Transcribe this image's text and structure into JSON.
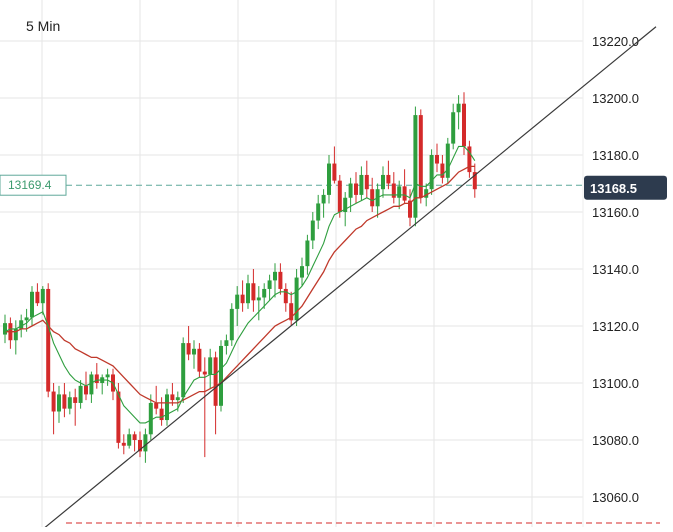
{
  "chart_data": {
    "type": "candlestick",
    "timeframe": "5 Min",
    "y_ticks": [
      "13220.0",
      "13200.0",
      "13180.0",
      "13160.0",
      "13140.0",
      "13120.0",
      "13100.0",
      "13080.0",
      "13060.0"
    ],
    "y_tick_values": [
      13220,
      13200,
      13180,
      13160,
      13140,
      13120,
      13100,
      13080,
      13060
    ],
    "ylim": [
      13050,
      13235
    ],
    "grid": true,
    "last_price_label": "13168.5",
    "last_price": 13168.5,
    "ref_price_label": "13169.4",
    "ref_price": 13169.4,
    "colors": {
      "up": "#2e9e3e",
      "down": "#d42a2a",
      "ma_fast": "#2e9e3e",
      "ma_slow": "#c0392b",
      "trendline": "#3a3a3a",
      "price_tag_bg": "#2d3b4e",
      "ref_line": "#5fa89a",
      "grid": "#e6e6e6"
    },
    "candles": [
      [
        13117,
        13124,
        13114,
        13121
      ],
      [
        13121,
        13123,
        13112,
        13115
      ],
      [
        13115,
        13122,
        13110,
        13119
      ],
      [
        13119,
        13124,
        13116,
        13122
      ],
      [
        13122,
        13126,
        13118,
        13123
      ],
      [
        13123,
        13134,
        13120,
        13132
      ],
      [
        13132,
        13135,
        13127,
        13128
      ],
      [
        13128,
        13134,
        13124,
        13133
      ],
      [
        13133,
        13135,
        13095,
        13097
      ],
      [
        13097,
        13100,
        13082,
        13090
      ],
      [
        13090,
        13099,
        13086,
        13096
      ],
      [
        13096,
        13100,
        13088,
        13091
      ],
      [
        13091,
        13097,
        13089,
        13095
      ],
      [
        13095,
        13098,
        13085,
        13093
      ],
      [
        13093,
        13101,
        13091,
        13099
      ],
      [
        13099,
        13104,
        13094,
        13096
      ],
      [
        13096,
        13104,
        13093,
        13103
      ],
      [
        13103,
        13107,
        13098,
        13100
      ],
      [
        13100,
        13103,
        13096,
        13102
      ],
      [
        13102,
        13105,
        13099,
        13103
      ],
      [
        13103,
        13105,
        13094,
        13097
      ],
      [
        13097,
        13100,
        13077,
        13079
      ],
      [
        13079,
        13082,
        13075,
        13078
      ],
      [
        13078,
        13084,
        13077,
        13082
      ],
      [
        13082,
        13083,
        13076,
        13080
      ],
      [
        13080,
        13083,
        13074,
        13076
      ],
      [
        13076,
        13084,
        13072,
        13082
      ],
      [
        13082,
        13096,
        13080,
        13093
      ],
      [
        13093,
        13099,
        13089,
        13091
      ],
      [
        13091,
        13095,
        13085,
        13087
      ],
      [
        13087,
        13098,
        13085,
        13096
      ],
      [
        13096,
        13100,
        13092,
        13094
      ],
      [
        13094,
        13097,
        13090,
        13095
      ],
      [
        13095,
        13116,
        13093,
        13114
      ],
      [
        13114,
        13120,
        13108,
        13110
      ],
      [
        13110,
        13115,
        13105,
        13112
      ],
      [
        13112,
        13114,
        13102,
        13104
      ],
      [
        13104,
        13109,
        13074,
        13103
      ],
      [
        13103,
        13112,
        13098,
        13109
      ],
      [
        13109,
        13111,
        13082,
        13092
      ],
      [
        13092,
        13115,
        13090,
        13113
      ],
      [
        13113,
        13117,
        13110,
        13115
      ],
      [
        13115,
        13128,
        13113,
        13126
      ],
      [
        13126,
        13134,
        13120,
        13131
      ],
      [
        13131,
        13136,
        13125,
        13128
      ],
      [
        13128,
        13138,
        13126,
        13135
      ],
      [
        13135,
        13140,
        13125,
        13129
      ],
      [
        13129,
        13134,
        13122,
        13130
      ],
      [
        13130,
        13135,
        13126,
        13133
      ],
      [
        13133,
        13138,
        13129,
        13136
      ],
      [
        13136,
        13142,
        13130,
        13139
      ],
      [
        13139,
        13142,
        13131,
        13133
      ],
      [
        13133,
        13135,
        13125,
        13128
      ],
      [
        13128,
        13132,
        13120,
        13122
      ],
      [
        13122,
        13140,
        13120,
        13137
      ],
      [
        13137,
        13144,
        13134,
        13141
      ],
      [
        13141,
        13152,
        13138,
        13150
      ],
      [
        13150,
        13160,
        13147,
        13157
      ],
      [
        13157,
        13166,
        13154,
        13163
      ],
      [
        13163,
        13168,
        13158,
        13166
      ],
      [
        13166,
        13180,
        13163,
        13177
      ],
      [
        13177,
        13183,
        13170,
        13171
      ],
      [
        13171,
        13173,
        13158,
        13160
      ],
      [
        13160,
        13167,
        13155,
        13165
      ],
      [
        13165,
        13172,
        13160,
        13170
      ],
      [
        13170,
        13174,
        13163,
        13166
      ],
      [
        13166,
        13176,
        13164,
        13173
      ],
      [
        13173,
        13178,
        13165,
        13168
      ],
      [
        13168,
        13172,
        13160,
        13162
      ],
      [
        13162,
        13170,
        13158,
        13168
      ],
      [
        13168,
        13176,
        13165,
        13173
      ],
      [
        13173,
        13178,
        13168,
        13170
      ],
      [
        13170,
        13174,
        13163,
        13165
      ],
      [
        13165,
        13171,
        13161,
        13169
      ],
      [
        13169,
        13175,
        13163,
        13164
      ],
      [
        13164,
        13168,
        13155,
        13158
      ],
      [
        13158,
        13197,
        13155,
        13194
      ],
      [
        13194,
        13196,
        13163,
        13165
      ],
      [
        13165,
        13170,
        13162,
        13168
      ],
      [
        13168,
        13182,
        13166,
        13180
      ],
      [
        13180,
        13184,
        13174,
        13177
      ],
      [
        13177,
        13180,
        13170,
        13172
      ],
      [
        13172,
        13186,
        13170,
        13184
      ],
      [
        13184,
        13198,
        13182,
        13195
      ],
      [
        13195,
        13201,
        13189,
        13198
      ],
      [
        13198,
        13202,
        13180,
        13183
      ],
      [
        13183,
        13185,
        13172,
        13174
      ],
      [
        13174,
        13177,
        13165,
        13168
      ]
    ],
    "ma_fast": [
      13118,
      13119,
      13119,
      13120,
      13121,
      13123,
      13124,
      13125,
      13120,
      13114,
      13110,
      13106,
      13103,
      13101,
      13100,
      13099,
      13100,
      13101,
      13101,
      13101,
      13100,
      13096,
      13092,
      13090,
      13088,
      13086,
      13086,
      13087,
      13088,
      13088,
      13089,
      13090,
      13091,
      13095,
      13098,
      13101,
      13102,
      13102,
      13103,
      13103,
      13105,
      13107,
      13111,
      13115,
      13118,
      13121,
      13123,
      13125,
      13127,
      13129,
      13131,
      13132,
      13132,
      13131,
      13132,
      13134,
      13137,
      13141,
      13145,
      13149,
      13155,
      13159,
      13160,
      13161,
      13162,
      13163,
      13164,
      13165,
      13164,
      13165,
      13166,
      13166,
      13166,
      13166,
      13166,
      13165,
      13170,
      13169,
      13169,
      13171,
      13173,
      13173,
      13175,
      13179,
      13183,
      13183,
      13181,
      13178
    ],
    "ma_slow": [
      13118,
      13118,
      13118,
      13119,
      13119,
      13120,
      13121,
      13122,
      13120,
      13118,
      13117,
      13115,
      13114,
      13112,
      13111,
      13110,
      13109,
      13109,
      13108,
      13107,
      13106,
      13104,
      13102,
      13100,
      13098,
      13096,
      13095,
      13094,
      13093,
      13093,
      13093,
      13093,
      13093,
      13094,
      13095,
      13096,
      13097,
      13097,
      13098,
      13099,
      13100,
      13102,
      13104,
      13106,
      13108,
      13110,
      13112,
      13114,
      13116,
      13118,
      13120,
      13121,
      13122,
      13123,
      13125,
      13127,
      13130,
      13133,
      13136,
      13139,
      13143,
      13146,
      13148,
      13150,
      13152,
      13154,
      13155,
      13157,
      13158,
      13159,
      13160,
      13161,
      13162,
      13162,
      13163,
      13163,
      13165,
      13165,
      13166,
      13167,
      13168,
      13169,
      13170,
      13172,
      13174,
      13175,
      13176,
      13176
    ]
  }
}
